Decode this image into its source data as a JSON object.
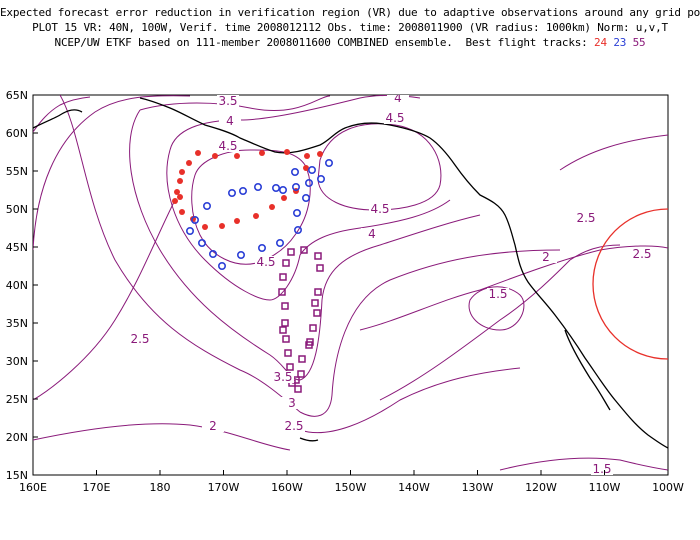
{
  "title": {
    "line1": "Expected forecast error reduction in verification region (VR) due to adaptive observations around any grid point.",
    "line2": "PLOT 15 VR: 40N, 100W, Verif. time 2008012112 Obs. time: 2008011900 (VR radius: 1000km) Norm: u,v,T",
    "line3_prefix": "NCEP/UW ETKF based on 111-member 2008011600 COMBINED ensemble.  Best flight tracks: ",
    "track_red": "24",
    "track_blue": "23",
    "track_purple": "55"
  },
  "map": {
    "lat_labels": [
      "65N",
      "60N",
      "55N",
      "50N",
      "45N",
      "40N",
      "35N",
      "30N",
      "25N",
      "20N",
      "15N"
    ],
    "lon_labels": [
      "160E",
      "170E",
      "180",
      "170W",
      "160W",
      "150W",
      "140W",
      "130W",
      "120W",
      "110W",
      "100W"
    ],
    "contour_labels": [
      "3.5",
      "4",
      "4.5",
      "4",
      "4.5",
      "4.5",
      "4",
      "4.5",
      "2.5",
      "2",
      "2.5",
      "1.5",
      "2.5",
      "3",
      "3.5",
      "2.5",
      "2",
      "1.5"
    ],
    "colors": {
      "contour": "#8a1a7a",
      "red_track": "#e8302a",
      "blue_track": "#2b3fd6",
      "purple_track": "#8a1a7a",
      "vr_circle": "#e8302a",
      "coast": "#000000"
    }
  }
}
